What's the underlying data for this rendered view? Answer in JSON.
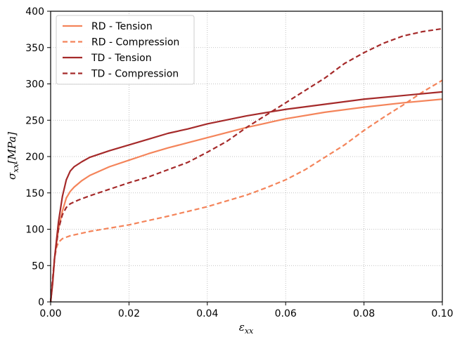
{
  "chart_data": {
    "type": "line",
    "title": "",
    "xlabel": "ε",
    "xlabel_sub": "xx",
    "ylabel": "σ",
    "ylabel_sub": "xx",
    "ylabel_unit": "[MPa]",
    "xlim": [
      0.0,
      0.1
    ],
    "ylim": [
      0,
      400
    ],
    "xticks": [
      "0.00",
      "0.02",
      "0.04",
      "0.06",
      "0.08",
      "0.10"
    ],
    "yticks": [
      "0",
      "50",
      "100",
      "150",
      "200",
      "250",
      "300",
      "350",
      "400"
    ],
    "grid": true,
    "legend_position": "top-left",
    "series": [
      {
        "name": "RD - Tension",
        "color": "#f4845a",
        "dash": "solid",
        "x": [
          0.0,
          0.0005,
          0.001,
          0.002,
          0.003,
          0.004,
          0.005,
          0.006,
          0.008,
          0.01,
          0.015,
          0.02,
          0.025,
          0.03,
          0.035,
          0.04,
          0.05,
          0.06,
          0.07,
          0.08,
          0.09,
          0.1
        ],
        "y": [
          0,
          25,
          60,
          100,
          125,
          143,
          152,
          158,
          167,
          174,
          186,
          195,
          204,
          212,
          219,
          226,
          240,
          252,
          261,
          268,
          274,
          279
        ]
      },
      {
        "name": "RD - Compression",
        "color": "#f4845a",
        "dash": "dashed",
        "x": [
          0.0,
          0.0005,
          0.001,
          0.0015,
          0.002,
          0.003,
          0.005,
          0.01,
          0.02,
          0.03,
          0.04,
          0.05,
          0.055,
          0.06,
          0.065,
          0.07,
          0.075,
          0.08,
          0.085,
          0.09,
          0.095,
          0.1
        ],
        "y": [
          0,
          30,
          60,
          75,
          82,
          87,
          91,
          97,
          106,
          118,
          131,
          147,
          157,
          168,
          182,
          199,
          216,
          236,
          254,
          271,
          289,
          305
        ]
      },
      {
        "name": "TD - Tension",
        "color": "#a52a2a",
        "dash": "solid",
        "x": [
          0.0,
          0.0005,
          0.001,
          0.002,
          0.003,
          0.004,
          0.005,
          0.006,
          0.008,
          0.01,
          0.015,
          0.02,
          0.025,
          0.03,
          0.035,
          0.04,
          0.05,
          0.06,
          0.07,
          0.08,
          0.09,
          0.1
        ],
        "y": [
          0,
          25,
          60,
          110,
          145,
          168,
          180,
          186,
          193,
          199,
          208,
          216,
          224,
          232,
          238,
          245,
          256,
          265,
          272,
          279,
          284,
          289
        ]
      },
      {
        "name": "TD - Compression",
        "color": "#a52a2a",
        "dash": "dashed",
        "x": [
          0.0,
          0.0005,
          0.001,
          0.002,
          0.003,
          0.004,
          0.005,
          0.007,
          0.01,
          0.015,
          0.02,
          0.025,
          0.03,
          0.035,
          0.04,
          0.045,
          0.05,
          0.055,
          0.06,
          0.065,
          0.07,
          0.075,
          0.08,
          0.085,
          0.09,
          0.095,
          0.1
        ],
        "y": [
          0,
          30,
          60,
          100,
          120,
          130,
          135,
          140,
          146,
          155,
          164,
          172,
          182,
          192,
          206,
          221,
          240,
          257,
          274,
          291,
          308,
          328,
          343,
          356,
          366,
          372,
          376
        ]
      }
    ]
  }
}
